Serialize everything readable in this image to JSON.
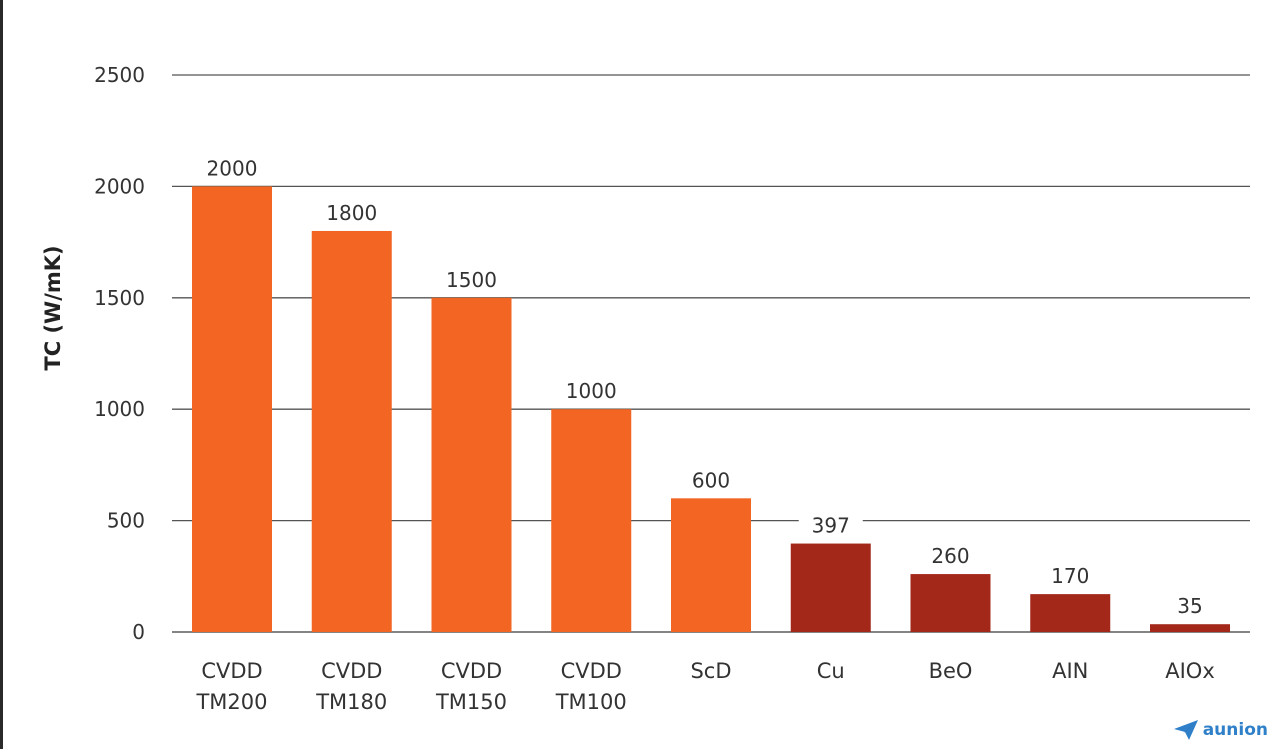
{
  "chart_data": {
    "type": "bar",
    "title": "",
    "xlabel": "",
    "ylabel": "TC (W/mK)",
    "ylim": [
      0,
      2500
    ],
    "yticks": [
      0,
      500,
      1000,
      1500,
      2000,
      2500
    ],
    "grid": true,
    "categories": [
      [
        "CVDD",
        "TM200"
      ],
      [
        "CVDD",
        "TM180"
      ],
      [
        "CVDD",
        "TM150"
      ],
      [
        "CVDD",
        "TM100"
      ],
      [
        "ScD"
      ],
      [
        "Cu"
      ],
      [
        "BeO"
      ],
      [
        "AIN"
      ],
      [
        "AIOx"
      ]
    ],
    "values": [
      2000,
      1800,
      1500,
      1000,
      600,
      397,
      260,
      170,
      35
    ],
    "value_labels": [
      "2000",
      "1800",
      "1500",
      "1000",
      "600",
      "397",
      "260",
      "170",
      "35"
    ],
    "bar_colors": [
      "#f26522",
      "#f26522",
      "#f26522",
      "#f26522",
      "#f26522",
      "#a3281a",
      "#a3281a",
      "#a3281a",
      "#a3281a"
    ],
    "gridline_color": "#555555"
  },
  "watermark": {
    "brand": "aunion",
    "icon": "paper-plane-icon",
    "color": "#2f80c9"
  }
}
